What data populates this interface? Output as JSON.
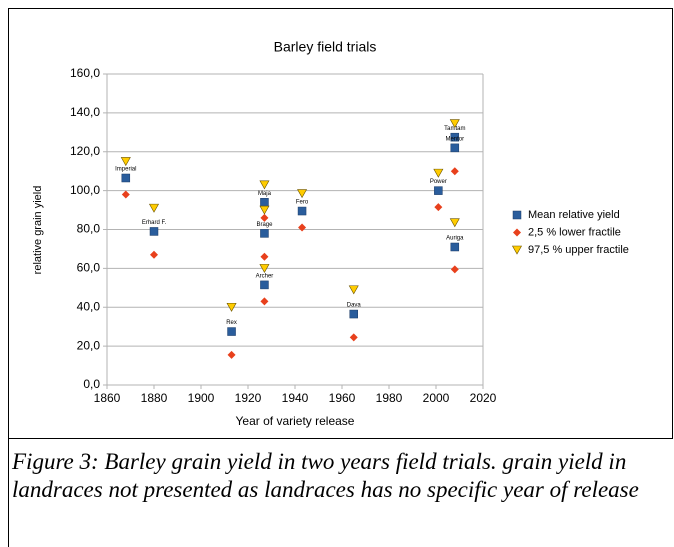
{
  "chart_data": {
    "type": "scatter",
    "title": "Barley field trials",
    "xlabel": "Year of variety release",
    "ylabel": "relative grain yield",
    "xlim": [
      1860,
      2020
    ],
    "xticks": [
      1860,
      1880,
      1900,
      1920,
      1940,
      1960,
      1980,
      2000,
      2020
    ],
    "ylim": [
      0,
      160
    ],
    "yticks": [
      {
        "value": 0,
        "label": "0,0"
      },
      {
        "value": 20,
        "label": "20,0"
      },
      {
        "value": 40,
        "label": "40,0"
      },
      {
        "value": 60,
        "label": "60,0"
      },
      {
        "value": 80,
        "label": "80,0"
      },
      {
        "value": 100,
        "label": "100,0"
      },
      {
        "value": 120,
        "label": "120,0"
      },
      {
        "value": 140,
        "label": "140,0"
      },
      {
        "value": 160,
        "label": "160,0"
      }
    ],
    "grid": true,
    "legend": "right",
    "series": [
      {
        "name": "Mean relative yield",
        "color": "#2a5d9c",
        "marker": "square",
        "x": [
          1868,
          1880,
          1913,
          1927,
          1927,
          1927,
          1943,
          1965,
          2001,
          2008,
          2008,
          2008
        ],
        "values": [
          106.5,
          79,
          27.5,
          94,
          78,
          51.5,
          89.5,
          36.5,
          100,
          127.5,
          122,
          71
        ],
        "labels": [
          "Imperial",
          "Erhard F.",
          "Rex",
          "Maja",
          "Brage",
          "Archer",
          "Fero",
          "Dava",
          "Power",
          "Tamtam",
          "Mentor",
          "Auriga"
        ]
      },
      {
        "name": "2,5 % lower fractile",
        "color": "#e8401c",
        "marker": "diamond",
        "x": [
          1868,
          1880,
          1913,
          1927,
          1927,
          1927,
          1943,
          1965,
          2001,
          2008,
          2008
        ],
        "values": [
          98,
          67,
          15.5,
          86,
          66,
          43,
          81,
          24.5,
          91.5,
          110,
          59.5
        ]
      },
      {
        "name": "97,5 % upper fractile",
        "color": "#ffcc00",
        "marker": "triangle",
        "x": [
          1868,
          1880,
          1913,
          1927,
          1927,
          1927,
          1943,
          1965,
          2001,
          2008,
          2008
        ],
        "values": [
          115,
          91,
          40,
          103,
          90,
          60,
          98.5,
          49,
          109,
          134.5,
          83.5
        ]
      }
    ]
  },
  "caption": "Figure 3: Barley grain yield in two years field trials. grain yield in landraces not presented as landraces has no specific year of release"
}
